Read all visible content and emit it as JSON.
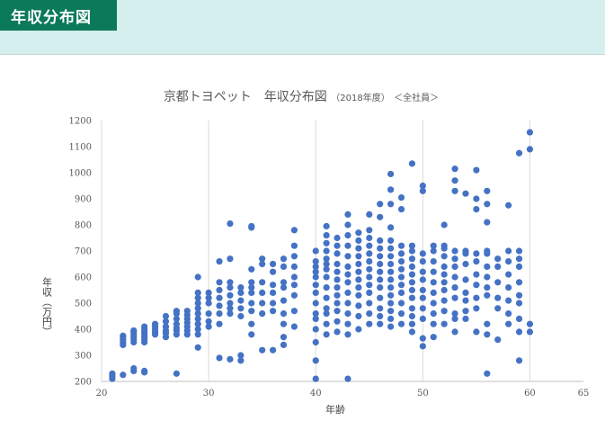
{
  "header": {
    "tag": "年収分布図"
  },
  "chart_data": {
    "type": "scatter",
    "title": "京都トヨペット　年収分布図",
    "title_year": "（2018年度）",
    "title_scope": "＜全社員＞",
    "xlabel": "年齢",
    "ylabel": "年収（万円）",
    "xlim": [
      20,
      65
    ],
    "ylim": [
      200,
      1200
    ],
    "xticks": [
      20,
      30,
      40,
      50,
      60,
      65
    ],
    "yticks": [
      200,
      300,
      400,
      500,
      600,
      700,
      800,
      900,
      1000,
      1100,
      1200
    ],
    "grid": "vertical major",
    "color": "#4472c4",
    "points": [
      [
        21,
        210
      ],
      [
        21,
        220
      ],
      [
        21,
        230
      ],
      [
        22,
        225
      ],
      [
        22,
        340
      ],
      [
        22,
        350
      ],
      [
        22,
        360
      ],
      [
        22,
        370
      ],
      [
        22,
        375
      ],
      [
        23,
        240
      ],
      [
        23,
        250
      ],
      [
        23,
        350
      ],
      [
        23,
        360
      ],
      [
        23,
        370
      ],
      [
        23,
        380
      ],
      [
        23,
        390
      ],
      [
        23,
        395
      ],
      [
        24,
        235
      ],
      [
        24,
        240
      ],
      [
        24,
        350
      ],
      [
        24,
        360
      ],
      [
        24,
        370
      ],
      [
        24,
        380
      ],
      [
        24,
        390
      ],
      [
        24,
        400
      ],
      [
        24,
        410
      ],
      [
        25,
        380
      ],
      [
        25,
        390
      ],
      [
        25,
        400
      ],
      [
        25,
        410
      ],
      [
        25,
        420
      ],
      [
        26,
        370
      ],
      [
        26,
        385
      ],
      [
        26,
        395
      ],
      [
        26,
        410
      ],
      [
        26,
        430
      ],
      [
        26,
        450
      ],
      [
        27,
        230
      ],
      [
        27,
        380
      ],
      [
        27,
        395
      ],
      [
        27,
        405
      ],
      [
        27,
        420
      ],
      [
        27,
        440
      ],
      [
        27,
        460
      ],
      [
        27,
        470
      ],
      [
        28,
        380
      ],
      [
        28,
        395
      ],
      [
        28,
        410
      ],
      [
        28,
        425
      ],
      [
        28,
        440
      ],
      [
        28,
        455
      ],
      [
        28,
        470
      ],
      [
        29,
        330
      ],
      [
        29,
        380
      ],
      [
        29,
        400
      ],
      [
        29,
        420
      ],
      [
        29,
        440
      ],
      [
        29,
        460
      ],
      [
        29,
        480
      ],
      [
        29,
        500
      ],
      [
        29,
        520
      ],
      [
        29,
        540
      ],
      [
        29,
        600
      ],
      [
        30,
        410
      ],
      [
        30,
        430
      ],
      [
        30,
        460
      ],
      [
        30,
        500
      ],
      [
        30,
        520
      ],
      [
        30,
        540
      ],
      [
        31,
        290
      ],
      [
        31,
        420
      ],
      [
        31,
        460
      ],
      [
        31,
        490
      ],
      [
        31,
        520
      ],
      [
        31,
        550
      ],
      [
        31,
        580
      ],
      [
        31,
        660
      ],
      [
        32,
        285
      ],
      [
        32,
        460
      ],
      [
        32,
        480
      ],
      [
        32,
        500
      ],
      [
        32,
        530
      ],
      [
        32,
        560
      ],
      [
        32,
        580
      ],
      [
        32,
        670
      ],
      [
        32,
        805
      ],
      [
        33,
        280
      ],
      [
        33,
        300
      ],
      [
        33,
        450
      ],
      [
        33,
        480
      ],
      [
        33,
        510
      ],
      [
        33,
        540
      ],
      [
        33,
        560
      ],
      [
        34,
        380
      ],
      [
        34,
        420
      ],
      [
        34,
        470
      ],
      [
        34,
        500
      ],
      [
        34,
        540
      ],
      [
        34,
        560
      ],
      [
        34,
        580
      ],
      [
        34,
        630
      ],
      [
        34,
        790
      ],
      [
        34,
        795
      ],
      [
        35,
        320
      ],
      [
        35,
        460
      ],
      [
        35,
        500
      ],
      [
        35,
        540
      ],
      [
        35,
        580
      ],
      [
        35,
        650
      ],
      [
        35,
        670
      ],
      [
        36,
        320
      ],
      [
        36,
        470
      ],
      [
        36,
        500
      ],
      [
        36,
        540
      ],
      [
        36,
        570
      ],
      [
        36,
        620
      ],
      [
        36,
        650
      ],
      [
        37,
        340
      ],
      [
        37,
        370
      ],
      [
        37,
        420
      ],
      [
        37,
        460
      ],
      [
        37,
        510
      ],
      [
        37,
        560
      ],
      [
        37,
        580
      ],
      [
        37,
        640
      ],
      [
        37,
        670
      ],
      [
        38,
        410
      ],
      [
        38,
        470
      ],
      [
        38,
        530
      ],
      [
        38,
        570
      ],
      [
        38,
        600
      ],
      [
        38,
        640
      ],
      [
        38,
        680
      ],
      [
        38,
        720
      ],
      [
        38,
        780
      ],
      [
        40,
        210
      ],
      [
        40,
        280
      ],
      [
        40,
        350
      ],
      [
        40,
        400
      ],
      [
        40,
        440
      ],
      [
        40,
        460
      ],
      [
        40,
        500
      ],
      [
        40,
        540
      ],
      [
        40,
        570
      ],
      [
        40,
        600
      ],
      [
        40,
        620
      ],
      [
        40,
        640
      ],
      [
        40,
        660
      ],
      [
        40,
        700
      ],
      [
        41,
        380
      ],
      [
        41,
        420
      ],
      [
        41,
        460
      ],
      [
        41,
        480
      ],
      [
        41,
        520
      ],
      [
        41,
        560
      ],
      [
        41,
        600
      ],
      [
        41,
        630
      ],
      [
        41,
        650
      ],
      [
        41,
        670
      ],
      [
        41,
        700
      ],
      [
        41,
        730
      ],
      [
        41,
        760
      ],
      [
        41,
        795
      ],
      [
        42,
        390
      ],
      [
        42,
        430
      ],
      [
        42,
        470
      ],
      [
        42,
        500
      ],
      [
        42,
        530
      ],
      [
        42,
        560
      ],
      [
        42,
        590
      ],
      [
        42,
        620
      ],
      [
        42,
        650
      ],
      [
        42,
        690
      ],
      [
        42,
        720
      ],
      [
        42,
        750
      ],
      [
        43,
        210
      ],
      [
        43,
        380
      ],
      [
        43,
        420
      ],
      [
        43,
        460
      ],
      [
        43,
        500
      ],
      [
        43,
        540
      ],
      [
        43,
        580
      ],
      [
        43,
        610
      ],
      [
        43,
        640
      ],
      [
        43,
        680
      ],
      [
        43,
        720
      ],
      [
        43,
        760
      ],
      [
        43,
        800
      ],
      [
        43,
        840
      ],
      [
        44,
        400
      ],
      [
        44,
        450
      ],
      [
        44,
        490
      ],
      [
        44,
        530
      ],
      [
        44,
        560
      ],
      [
        44,
        590
      ],
      [
        44,
        620
      ],
      [
        44,
        650
      ],
      [
        44,
        680
      ],
      [
        44,
        710
      ],
      [
        44,
        740
      ],
      [
        44,
        770
      ],
      [
        45,
        420
      ],
      [
        45,
        460
      ],
      [
        45,
        500
      ],
      [
        45,
        540
      ],
      [
        45,
        570
      ],
      [
        45,
        600
      ],
      [
        45,
        630
      ],
      [
        45,
        660
      ],
      [
        45,
        690
      ],
      [
        45,
        720
      ],
      [
        45,
        750
      ],
      [
        45,
        780
      ],
      [
        45,
        840
      ],
      [
        46,
        420
      ],
      [
        46,
        450
      ],
      [
        46,
        480
      ],
      [
        46,
        520
      ],
      [
        46,
        560
      ],
      [
        46,
        590
      ],
      [
        46,
        620
      ],
      [
        46,
        650
      ],
      [
        46,
        680
      ],
      [
        46,
        710
      ],
      [
        46,
        740
      ],
      [
        46,
        830
      ],
      [
        46,
        880
      ],
      [
        47,
        410
      ],
      [
        47,
        440
      ],
      [
        47,
        470
      ],
      [
        47,
        500
      ],
      [
        47,
        530
      ],
      [
        47,
        560
      ],
      [
        47,
        590
      ],
      [
        47,
        620
      ],
      [
        47,
        650
      ],
      [
        47,
        680
      ],
      [
        47,
        710
      ],
      [
        47,
        740
      ],
      [
        47,
        790
      ],
      [
        47,
        880
      ],
      [
        47,
        935
      ],
      [
        47,
        995
      ],
      [
        48,
        420
      ],
      [
        48,
        460
      ],
      [
        48,
        500
      ],
      [
        48,
        540
      ],
      [
        48,
        570
      ],
      [
        48,
        600
      ],
      [
        48,
        630
      ],
      [
        48,
        660
      ],
      [
        48,
        690
      ],
      [
        48,
        720
      ],
      [
        48,
        860
      ],
      [
        48,
        905
      ],
      [
        49,
        390
      ],
      [
        49,
        420
      ],
      [
        49,
        450
      ],
      [
        49,
        480
      ],
      [
        49,
        520
      ],
      [
        49,
        550
      ],
      [
        49,
        580
      ],
      [
        49,
        610
      ],
      [
        49,
        640
      ],
      [
        49,
        670
      ],
      [
        49,
        700
      ],
      [
        49,
        720
      ],
      [
        49,
        1035
      ],
      [
        50,
        335
      ],
      [
        50,
        365
      ],
      [
        50,
        440
      ],
      [
        50,
        480
      ],
      [
        50,
        520
      ],
      [
        50,
        550
      ],
      [
        50,
        590
      ],
      [
        50,
        620
      ],
      [
        50,
        660
      ],
      [
        50,
        690
      ],
      [
        50,
        930
      ],
      [
        50,
        950
      ],
      [
        51,
        370
      ],
      [
        51,
        420
      ],
      [
        51,
        460
      ],
      [
        51,
        500
      ],
      [
        51,
        540
      ],
      [
        51,
        580
      ],
      [
        51,
        620
      ],
      [
        51,
        660
      ],
      [
        51,
        700
      ],
      [
        51,
        720
      ],
      [
        52,
        420
      ],
      [
        52,
        470
      ],
      [
        52,
        510
      ],
      [
        52,
        550
      ],
      [
        52,
        580
      ],
      [
        52,
        610
      ],
      [
        52,
        640
      ],
      [
        52,
        680
      ],
      [
        52,
        710
      ],
      [
        52,
        720
      ],
      [
        52,
        800
      ],
      [
        53,
        390
      ],
      [
        53,
        440
      ],
      [
        53,
        460
      ],
      [
        53,
        520
      ],
      [
        53,
        560
      ],
      [
        53,
        600
      ],
      [
        53,
        640
      ],
      [
        53,
        670
      ],
      [
        53,
        700
      ],
      [
        53,
        930
      ],
      [
        53,
        970
      ],
      [
        53,
        1015
      ],
      [
        54,
        440
      ],
      [
        54,
        470
      ],
      [
        54,
        510
      ],
      [
        54,
        540
      ],
      [
        54,
        590
      ],
      [
        54,
        650
      ],
      [
        54,
        690
      ],
      [
        54,
        700
      ],
      [
        54,
        920
      ],
      [
        55,
        390
      ],
      [
        55,
        480
      ],
      [
        55,
        520
      ],
      [
        55,
        570
      ],
      [
        55,
        610
      ],
      [
        55,
        660
      ],
      [
        55,
        690
      ],
      [
        55,
        860
      ],
      [
        55,
        900
      ],
      [
        55,
        1010
      ],
      [
        56,
        230
      ],
      [
        56,
        380
      ],
      [
        56,
        420
      ],
      [
        56,
        530
      ],
      [
        56,
        560
      ],
      [
        56,
        600
      ],
      [
        56,
        640
      ],
      [
        56,
        690
      ],
      [
        56,
        700
      ],
      [
        56,
        810
      ],
      [
        56,
        880
      ],
      [
        56,
        930
      ],
      [
        57,
        360
      ],
      [
        57,
        480
      ],
      [
        57,
        520
      ],
      [
        57,
        580
      ],
      [
        57,
        640
      ],
      [
        57,
        670
      ],
      [
        58,
        420
      ],
      [
        58,
        460
      ],
      [
        58,
        510
      ],
      [
        58,
        560
      ],
      [
        58,
        610
      ],
      [
        58,
        660
      ],
      [
        58,
        700
      ],
      [
        58,
        875
      ],
      [
        59,
        280
      ],
      [
        59,
        390
      ],
      [
        59,
        440
      ],
      [
        59,
        500
      ],
      [
        59,
        530
      ],
      [
        59,
        580
      ],
      [
        59,
        640
      ],
      [
        59,
        670
      ],
      [
        59,
        700
      ],
      [
        59,
        1075
      ],
      [
        60,
        390
      ],
      [
        60,
        420
      ],
      [
        60,
        1090
      ],
      [
        60,
        1155
      ]
    ]
  }
}
